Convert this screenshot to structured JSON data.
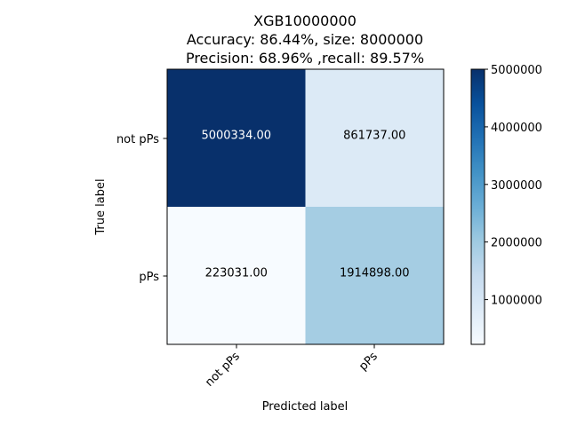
{
  "chart_data": {
    "type": "heatmap",
    "title_lines": [
      "XGB10000000",
      "Accuracy: 86.44%, size: 8000000",
      "Precision: 68.96% ,recall: 89.57%"
    ],
    "xlabel": "Predicted label",
    "ylabel": "True label",
    "x_categories": [
      "not pPs",
      "pPs"
    ],
    "y_categories": [
      "not pPs",
      "pPs"
    ],
    "values": [
      [
        5000334.0,
        861737.0
      ],
      [
        223031.0,
        1914898.0
      ]
    ],
    "cell_labels": [
      [
        "5000334.00",
        "861737.00"
      ],
      [
        "223031.00",
        "1914898.00"
      ]
    ],
    "colormap": "Blues",
    "colorbar": {
      "vmin": 223031.0,
      "vmax": 5000334.0,
      "ticks": [
        1000000,
        2000000,
        3000000,
        4000000,
        5000000
      ],
      "tick_labels": [
        "1000000",
        "2000000",
        "3000000",
        "4000000",
        "5000000"
      ]
    },
    "grid": false
  }
}
